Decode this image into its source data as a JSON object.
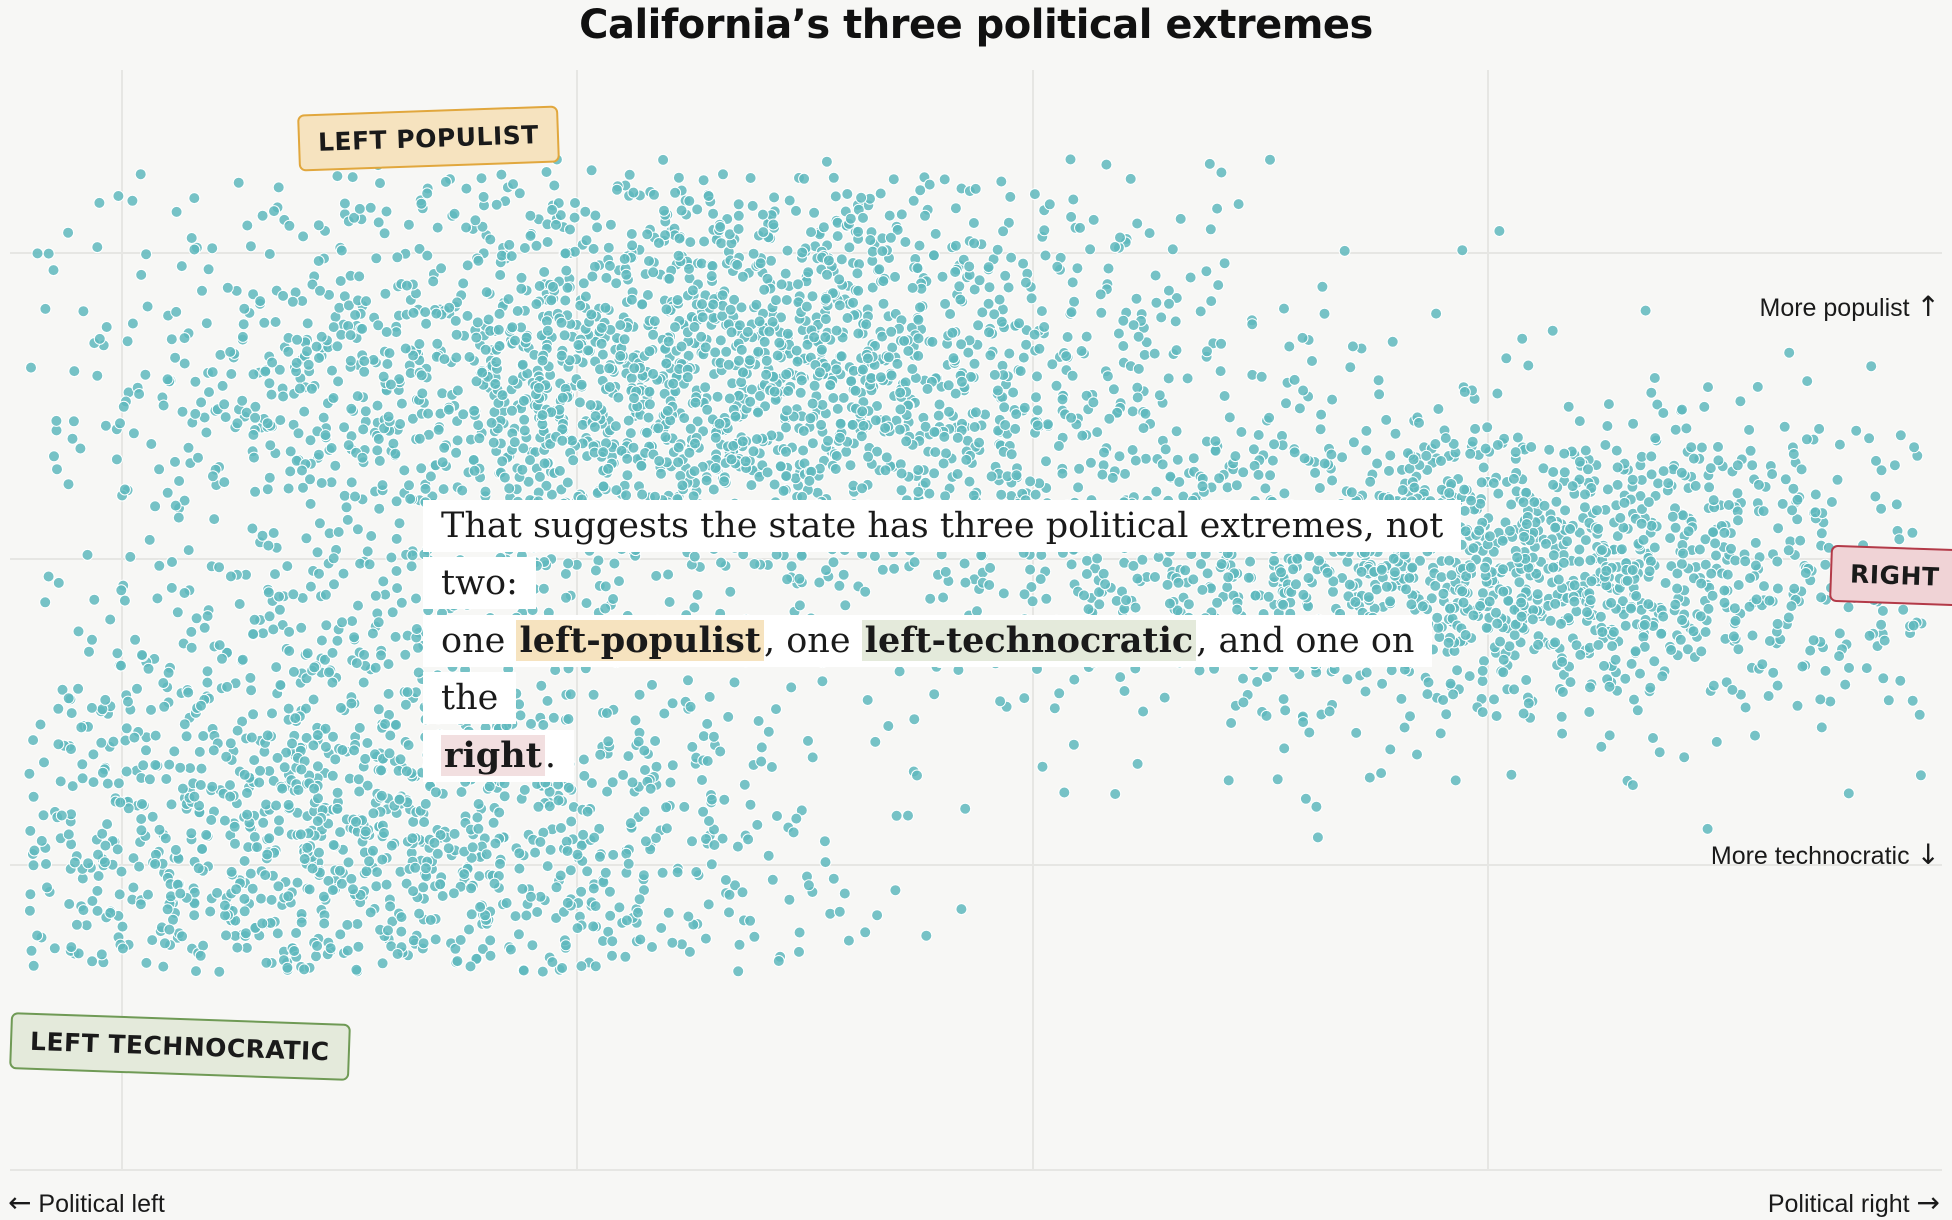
{
  "title": "California’s three political extremes",
  "chart_data": {
    "type": "scatter",
    "title": "California’s three political extremes",
    "xlabel_left": "Political left",
    "xlabel_right": "Political right",
    "ylabel_top": "More populist",
    "ylabel_bottom": "More technocratic",
    "xlim": [
      0,
      100
    ],
    "ylim": [
      0,
      100
    ],
    "grid": true,
    "point_color": "#5fb8bd",
    "point_count_estimate": 6000,
    "clusters": [
      {
        "label": "LEFT POPULIST",
        "center": [
          35,
          72
        ],
        "spread": [
          14,
          10
        ],
        "share": 0.42
      },
      {
        "label": "LEFT TECHNOCRATIC",
        "center": [
          18,
          30
        ],
        "spread": [
          12,
          12
        ],
        "share": 0.3
      },
      {
        "label": "RIGHT",
        "center": [
          76,
          55
        ],
        "spread": [
          12,
          7
        ],
        "share": 0.28
      }
    ]
  },
  "labels": {
    "left_populist": "LEFT POPULIST",
    "left_technocratic": "LEFT TECHNOCRATIC",
    "right": "RIGHT",
    "more_populist": "More populist",
    "more_technocratic": "More technocratic",
    "political_left": "Political left",
    "political_right": "Political right"
  },
  "annotation": {
    "line1": "That suggests the state has three political extremes, not two:",
    "line2_pre": "one ",
    "term_populist": "left-populist",
    "line2_mid": ", one ",
    "term_technocratic": "left-technocratic",
    "line2_post": ", and one on the",
    "term_right": "right",
    "line3_post": "."
  },
  "colors": {
    "background": "#f7f7f5",
    "point": "#5fb8bd",
    "point_stroke": "#ffffff",
    "grid": "#e6e6e3",
    "populist_fill": "#f6e3bf",
    "populist_border": "#e1a73d",
    "technocratic_fill": "#e4eadb",
    "technocratic_border": "#6f9a55",
    "right_fill": "#f0d3d6",
    "right_border": "#b33a48"
  }
}
